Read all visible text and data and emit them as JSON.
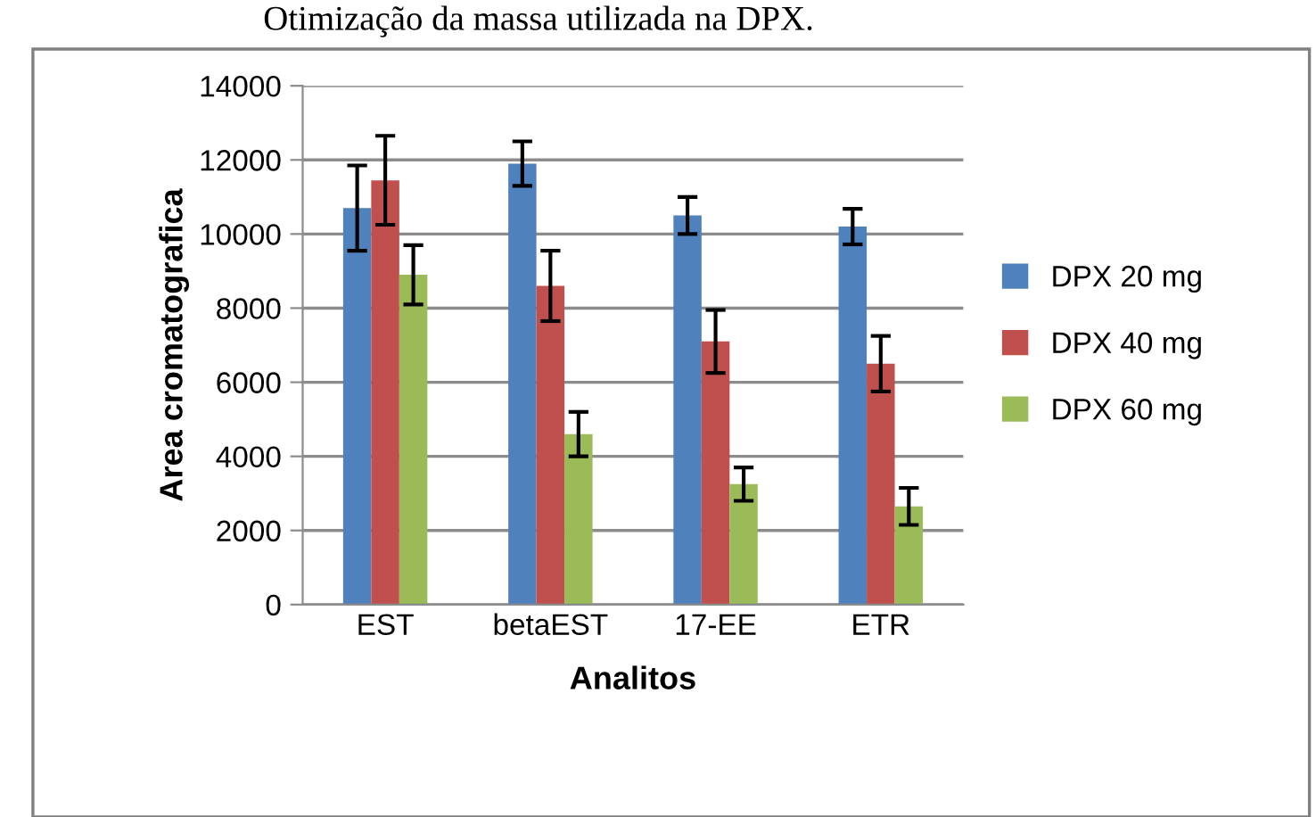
{
  "chart_data": {
    "type": "bar",
    "title": "Otimização da massa utilizada na DPX.",
    "xlabel": "Analitos",
    "ylabel": "Area cromatografica",
    "categories": [
      "EST",
      "betaEST",
      "17-EE",
      "ETR"
    ],
    "series": [
      {
        "name": "DPX 20 mg",
        "color": "#4f81bd",
        "values": [
          10700,
          11900,
          10500,
          10200
        ],
        "errors": [
          1150,
          600,
          500,
          480
        ]
      },
      {
        "name": "DPX 40 mg",
        "color": "#c0504d",
        "values": [
          11450,
          8600,
          7100,
          6500
        ],
        "errors": [
          1200,
          950,
          850,
          750
        ]
      },
      {
        "name": "DPX 60 mg",
        "color": "#9bbb59",
        "values": [
          8900,
          4600,
          3250,
          2650
        ],
        "errors": [
          800,
          600,
          450,
          500
        ]
      }
    ],
    "ylim": [
      0,
      14000
    ],
    "yticks": [
      0,
      2000,
      4000,
      6000,
      8000,
      10000,
      12000,
      14000
    ],
    "grid": "y",
    "legend": "right"
  }
}
